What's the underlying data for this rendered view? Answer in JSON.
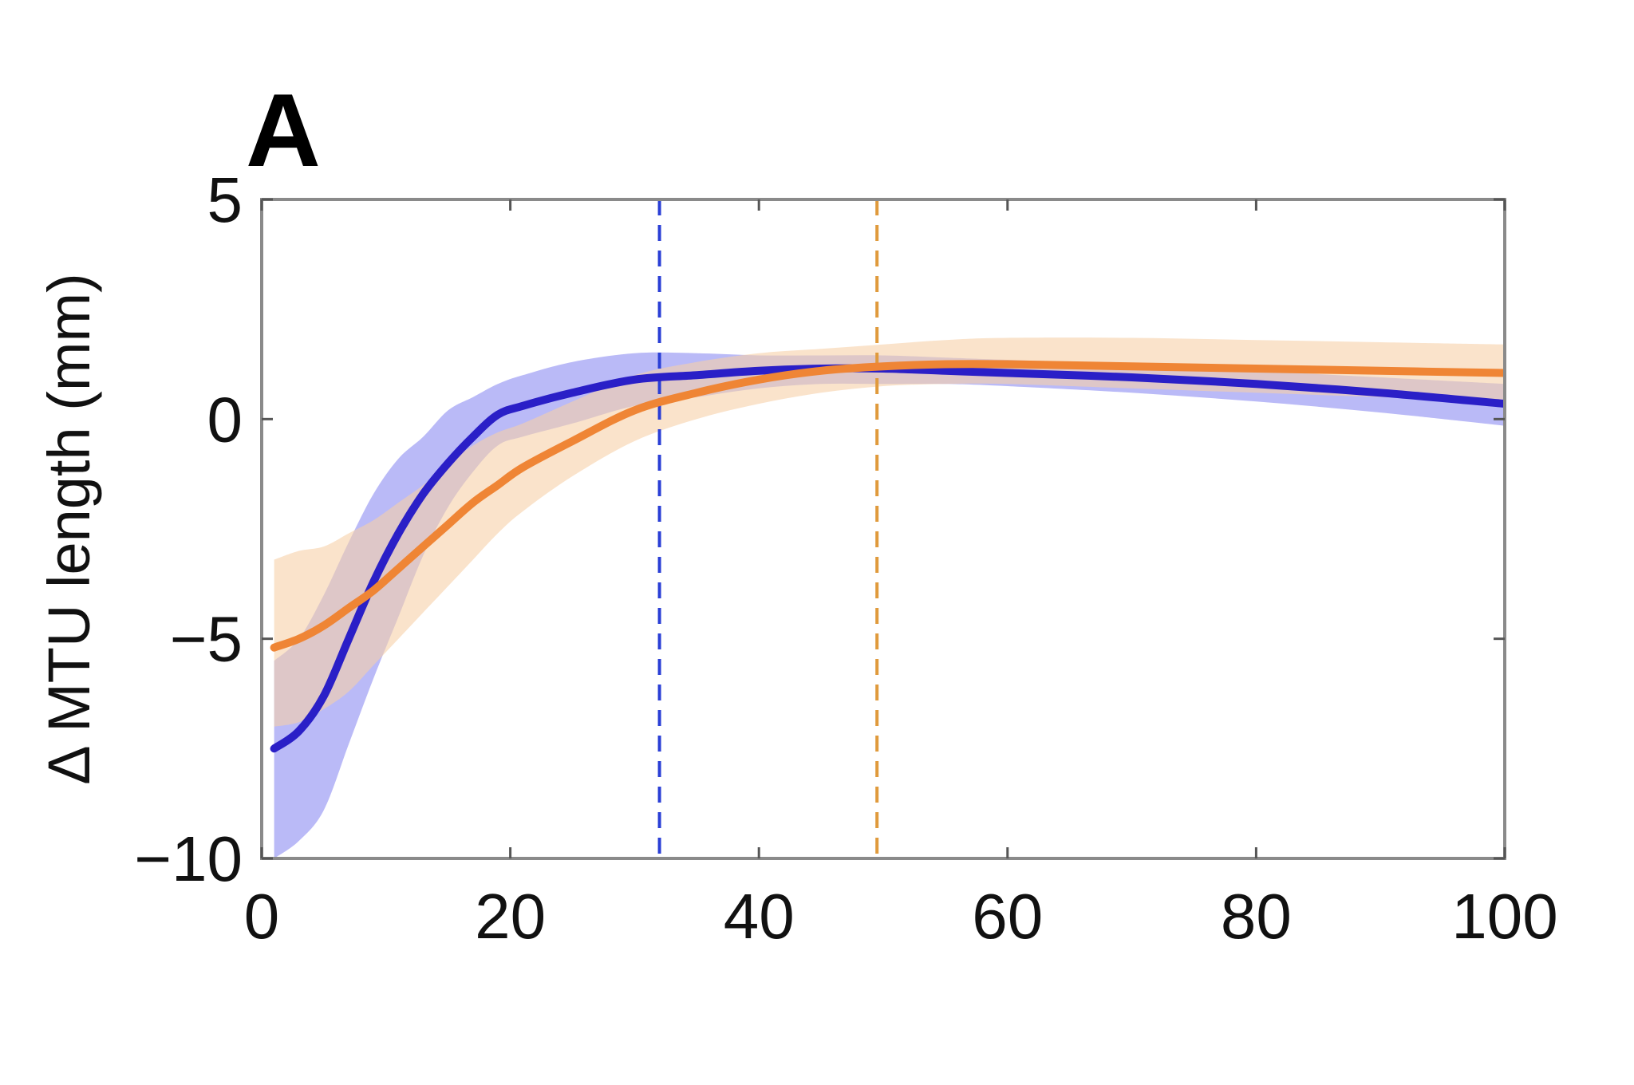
{
  "panel_label": "A",
  "chart_data": {
    "type": "line",
    "title": "",
    "xlabel": "",
    "ylabel": "Δ MTU length (mm)",
    "xlim": [
      0,
      100
    ],
    "ylim": [
      -10,
      5
    ],
    "xticks": [
      0,
      20,
      40,
      60,
      80,
      100
    ],
    "yticks": [
      -10,
      -5,
      0,
      5
    ],
    "xtick_labels": [
      "0",
      "20",
      "40",
      "60",
      "80",
      "100"
    ],
    "ytick_labels": [
      "−10",
      "−5",
      "0",
      "5"
    ],
    "grid": false,
    "legend": "none",
    "series": [
      {
        "color": "#2a1fc7",
        "band_color": "#8f8ff2",
        "x": [
          1,
          3,
          5,
          7,
          9,
          11,
          13,
          15,
          17,
          19,
          21,
          25,
          30,
          35,
          40,
          45,
          50,
          55,
          60,
          70,
          80,
          90,
          100
        ],
        "y": [
          -7.5,
          -7.1,
          -6.3,
          -5.0,
          -3.7,
          -2.6,
          -1.7,
          -1.0,
          -0.4,
          0.1,
          0.3,
          0.6,
          0.9,
          1.0,
          1.1,
          1.15,
          1.15,
          1.1,
          1.05,
          0.95,
          0.8,
          0.6,
          0.35
        ],
        "upper": [
          -5.5,
          -5.0,
          -4.0,
          -2.8,
          -1.7,
          -0.9,
          -0.4,
          0.2,
          0.5,
          0.8,
          1.0,
          1.3,
          1.5,
          1.5,
          1.45,
          1.45,
          1.45,
          1.4,
          1.35,
          1.25,
          1.1,
          0.95,
          0.8
        ],
        "lower": [
          -10.0,
          -9.6,
          -8.9,
          -7.4,
          -5.9,
          -4.5,
          -3.1,
          -2.0,
          -1.2,
          -0.6,
          -0.4,
          -0.1,
          0.3,
          0.5,
          0.7,
          0.8,
          0.8,
          0.8,
          0.75,
          0.6,
          0.4,
          0.15,
          -0.15
        ]
      },
      {
        "color": "#ef8535",
        "band_color": "#f6d0a9",
        "x": [
          1,
          3,
          5,
          7,
          9,
          11,
          13,
          15,
          17,
          19,
          21,
          25,
          30,
          35,
          40,
          45,
          50,
          55,
          60,
          70,
          80,
          90,
          100
        ],
        "y": [
          -5.2,
          -5.0,
          -4.7,
          -4.3,
          -3.9,
          -3.4,
          -2.9,
          -2.4,
          -1.9,
          -1.5,
          -1.1,
          -0.5,
          0.2,
          0.6,
          0.9,
          1.1,
          1.2,
          1.25,
          1.25,
          1.2,
          1.15,
          1.1,
          1.05
        ],
        "upper": [
          -3.2,
          -3.0,
          -2.9,
          -2.6,
          -2.3,
          -1.9,
          -1.5,
          -1.0,
          -0.6,
          -0.3,
          -0.1,
          0.4,
          1.0,
          1.3,
          1.5,
          1.6,
          1.7,
          1.8,
          1.85,
          1.85,
          1.8,
          1.75,
          1.7
        ],
        "lower": [
          -7.0,
          -6.9,
          -6.6,
          -6.2,
          -5.6,
          -5.0,
          -4.4,
          -3.8,
          -3.2,
          -2.6,
          -2.1,
          -1.3,
          -0.5,
          0.0,
          0.35,
          0.6,
          0.75,
          0.8,
          0.8,
          0.7,
          0.6,
          0.5,
          0.4
        ]
      }
    ],
    "reference_lines": [
      {
        "x": 32,
        "color": "#2a3fd6",
        "style": "dashed"
      },
      {
        "x": 49.5,
        "color": "#e09a3c",
        "style": "dashed"
      }
    ]
  }
}
